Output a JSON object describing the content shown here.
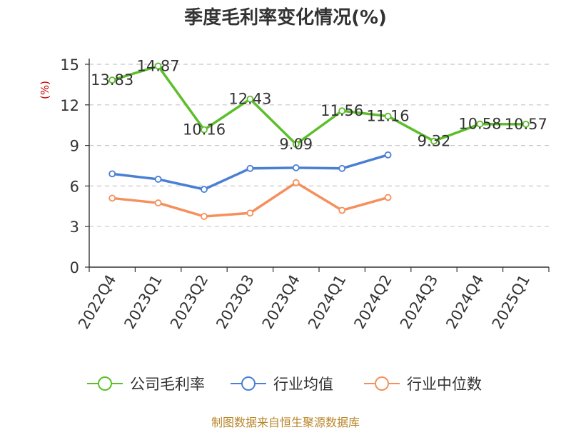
{
  "chart_data": {
    "type": "line",
    "title": "季度毛利率变化情况(%)",
    "ylabel": "(%)",
    "xlabel": "",
    "categories": [
      "2022Q4",
      "2023Q1",
      "2023Q2",
      "2023Q3",
      "2023Q4",
      "2024Q1",
      "2024Q2",
      "2024Q3",
      "2024Q4",
      "2025Q1"
    ],
    "ylim": [
      0,
      15
    ],
    "yticks": [
      0,
      3,
      6,
      9,
      12,
      15
    ],
    "grid": "horizontal-dashed",
    "legend_position": "bottom",
    "series": [
      {
        "name": "公司毛利率",
        "color": "#5cbf2a",
        "show_labels": true,
        "values": [
          13.83,
          14.87,
          10.16,
          12.43,
          9.09,
          11.56,
          11.16,
          9.32,
          10.58,
          10.57
        ],
        "labels": [
          "13.83",
          "14.87",
          "10.16",
          "12.43",
          "9.09",
          "11.56",
          "11.16",
          "9.32",
          "10.58",
          "10.57"
        ]
      },
      {
        "name": "行业均值",
        "color": "#4a7fd6",
        "show_labels": false,
        "values": [
          6.9,
          6.5,
          5.75,
          7.3,
          7.35,
          7.3,
          8.3,
          null,
          null,
          null
        ]
      },
      {
        "name": "行业中位数",
        "color": "#f5905c",
        "show_labels": false,
        "values": [
          5.1,
          4.75,
          3.75,
          4.0,
          6.25,
          4.2,
          5.15,
          null,
          null,
          null
        ]
      }
    ]
  },
  "source": "制图数据来自恒生聚源数据库"
}
